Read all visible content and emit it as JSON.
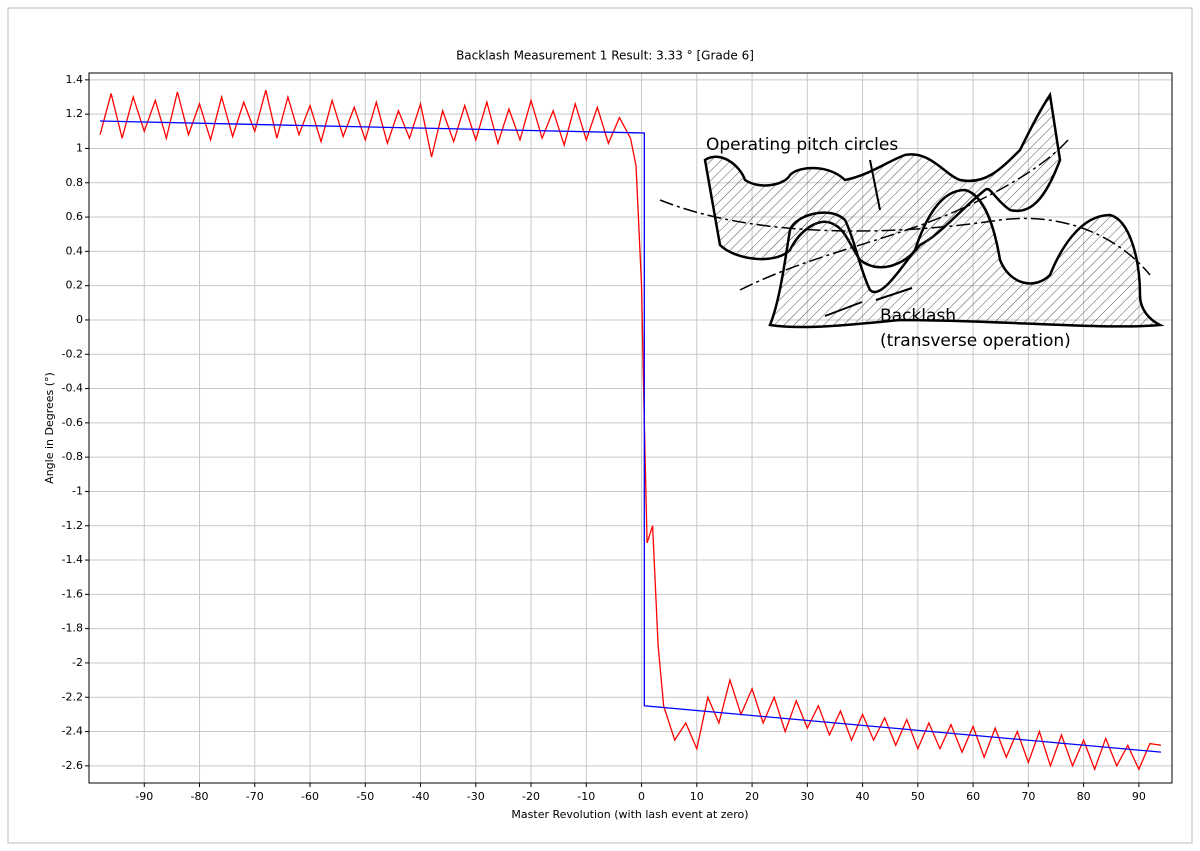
{
  "chart_data": {
    "type": "line",
    "title": "Backlash Measurement 1 Result: 3.33 ° [Grade 6]",
    "x_label": "Master Revolution (with lash event at zero)",
    "y_label": "Angle in Degrees (°)",
    "xlim": [
      -100,
      96
    ],
    "ylim": [
      -2.7,
      1.44
    ],
    "xticks": [
      -90,
      -80,
      -70,
      -60,
      -50,
      -40,
      -30,
      -20,
      -10,
      0,
      10,
      20,
      30,
      40,
      50,
      60,
      70,
      80,
      90
    ],
    "yticks": [
      1.4,
      1.2,
      1,
      0.8,
      0.6,
      0.4,
      0.2,
      0,
      -0.2,
      -0.4,
      -0.6,
      -0.8,
      -1,
      -1.2,
      -1.4,
      -1.6,
      -1.8,
      -2,
      -2.2,
      -2.4,
      -2.6
    ],
    "grid": true,
    "series": [
      {
        "color": "#ff0000",
        "x": [
          -98,
          -96,
          -94,
          -92,
          -90,
          -88,
          -86,
          -84,
          -82,
          -80,
          -78,
          -76,
          -74,
          -72,
          -70,
          -68,
          -66,
          -64,
          -62,
          -60,
          -58,
          -56,
          -54,
          -52,
          -50,
          -48,
          -46,
          -44,
          -42,
          -40,
          -38,
          -36,
          -34,
          -32,
          -30,
          -28,
          -26,
          -24,
          -22,
          -20,
          -18,
          -16,
          -14,
          -12,
          -10,
          -8,
          -6,
          -4,
          -2,
          -1,
          0,
          0.5,
          1,
          2,
          3,
          4,
          6,
          8,
          10,
          12,
          14,
          16,
          18,
          20,
          22,
          24,
          26,
          28,
          30,
          32,
          34,
          36,
          38,
          40,
          42,
          44,
          46,
          48,
          50,
          52,
          54,
          56,
          58,
          60,
          62,
          64,
          66,
          68,
          70,
          72,
          74,
          76,
          78,
          80,
          82,
          84,
          86,
          88,
          90,
          92,
          94
        ],
        "values": [
          1.08,
          1.32,
          1.06,
          1.3,
          1.1,
          1.28,
          1.06,
          1.33,
          1.08,
          1.26,
          1.05,
          1.3,
          1.07,
          1.27,
          1.1,
          1.34,
          1.06,
          1.3,
          1.08,
          1.25,
          1.04,
          1.28,
          1.07,
          1.24,
          1.05,
          1.27,
          1.03,
          1.22,
          1.06,
          1.26,
          0.95,
          1.22,
          1.04,
          1.25,
          1.05,
          1.27,
          1.03,
          1.23,
          1.05,
          1.28,
          1.06,
          1.22,
          1.02,
          1.26,
          1.05,
          1.24,
          1.03,
          1.18,
          1.06,
          0.9,
          0.2,
          -0.6,
          -1.3,
          -1.2,
          -1.9,
          -2.25,
          -2.45,
          -2.35,
          -2.5,
          -2.2,
          -2.35,
          -2.1,
          -2.3,
          -2.15,
          -2.35,
          -2.2,
          -2.4,
          -2.22,
          -2.38,
          -2.25,
          -2.42,
          -2.28,
          -2.45,
          -2.3,
          -2.45,
          -2.32,
          -2.48,
          -2.33,
          -2.5,
          -2.35,
          -2.5,
          -2.36,
          -2.52,
          -2.37,
          -2.55,
          -2.38,
          -2.55,
          -2.4,
          -2.58,
          -2.4,
          -2.6,
          -2.42,
          -2.6,
          -2.45,
          -2.62,
          -2.44,
          -2.6,
          -2.48,
          -2.62,
          -2.47,
          -2.48
        ]
      },
      {
        "color": "#0000ff",
        "x": [
          -98,
          0.5,
          0.5,
          94
        ],
        "values": [
          1.16,
          1.09,
          -2.25,
          -2.52
        ]
      }
    ],
    "annotations": [
      "Operating pitch circles",
      "Backlash",
      "(transverse operation)"
    ]
  }
}
